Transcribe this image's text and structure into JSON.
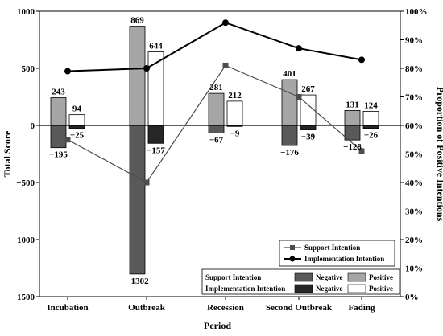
{
  "chart_data": {
    "type": "bar",
    "xlabel": "Period",
    "ylabel_left": "Total Score",
    "ylabel_right": "Proportion of  Positive Intentions",
    "ylim_left": [
      -1500,
      1000
    ],
    "ylim_right": [
      0,
      100
    ],
    "yticks_left": [
      "1000",
      "500",
      "0",
      "−500",
      "−1000",
      "−1500"
    ],
    "yticks_right": [
      "100%",
      "90%",
      "80%",
      "70%",
      "60%",
      "50%",
      "40%",
      "30%",
      "20%",
      "10%",
      "0%"
    ],
    "categories": [
      "Incubation",
      "Outbreak",
      "Recession",
      "Second Outbreak",
      "Fading"
    ],
    "bar_series": [
      {
        "group": "Support Intention",
        "polarity": "positive",
        "values": [
          243,
          869,
          281,
          401,
          131
        ],
        "labels": [
          "243",
          "869",
          "281",
          "401",
          "131"
        ],
        "color": "#a6a6a6"
      },
      {
        "group": "Support Intention",
        "polarity": "negative",
        "values": [
          -195,
          -1302,
          -67,
          -176,
          -128
        ],
        "labels": [
          "−195",
          "−1302",
          "−67",
          "−176",
          "−128"
        ],
        "color": "#595959"
      },
      {
        "group": "Implementation Intention",
        "polarity": "positive",
        "values": [
          94,
          644,
          212,
          267,
          124
        ],
        "labels": [
          "94",
          "644",
          "212",
          "267",
          "124"
        ],
        "color": "#ffffff"
      },
      {
        "group": "Implementation Intention",
        "polarity": "negative",
        "values": [
          -25,
          -157,
          -9,
          -39,
          -26
        ],
        "labels": [
          "−25",
          "−157",
          "−9",
          "−39",
          "−26"
        ],
        "color": "#262626"
      }
    ],
    "line_series": [
      {
        "name": "Support Intention",
        "marker": "square",
        "color": "#4d4d4d",
        "values": [
          55,
          40,
          81,
          70,
          51
        ]
      },
      {
        "name": "Implementation Intention",
        "marker": "circle",
        "color": "#000000",
        "values": [
          79,
          80,
          96,
          87,
          83
        ]
      }
    ],
    "legend_lines": {
      "items": [
        "Support Intention",
        "Implementation Intention"
      ],
      "position": "bottom-right"
    },
    "legend_bars": {
      "rows": [
        {
          "label": "Support Intention",
          "negative": "Negative",
          "positive": "Positive"
        },
        {
          "label": "Implementation Intention",
          "negative": "Negative",
          "positive": "Positive"
        }
      ],
      "position": "bottom-right"
    }
  }
}
